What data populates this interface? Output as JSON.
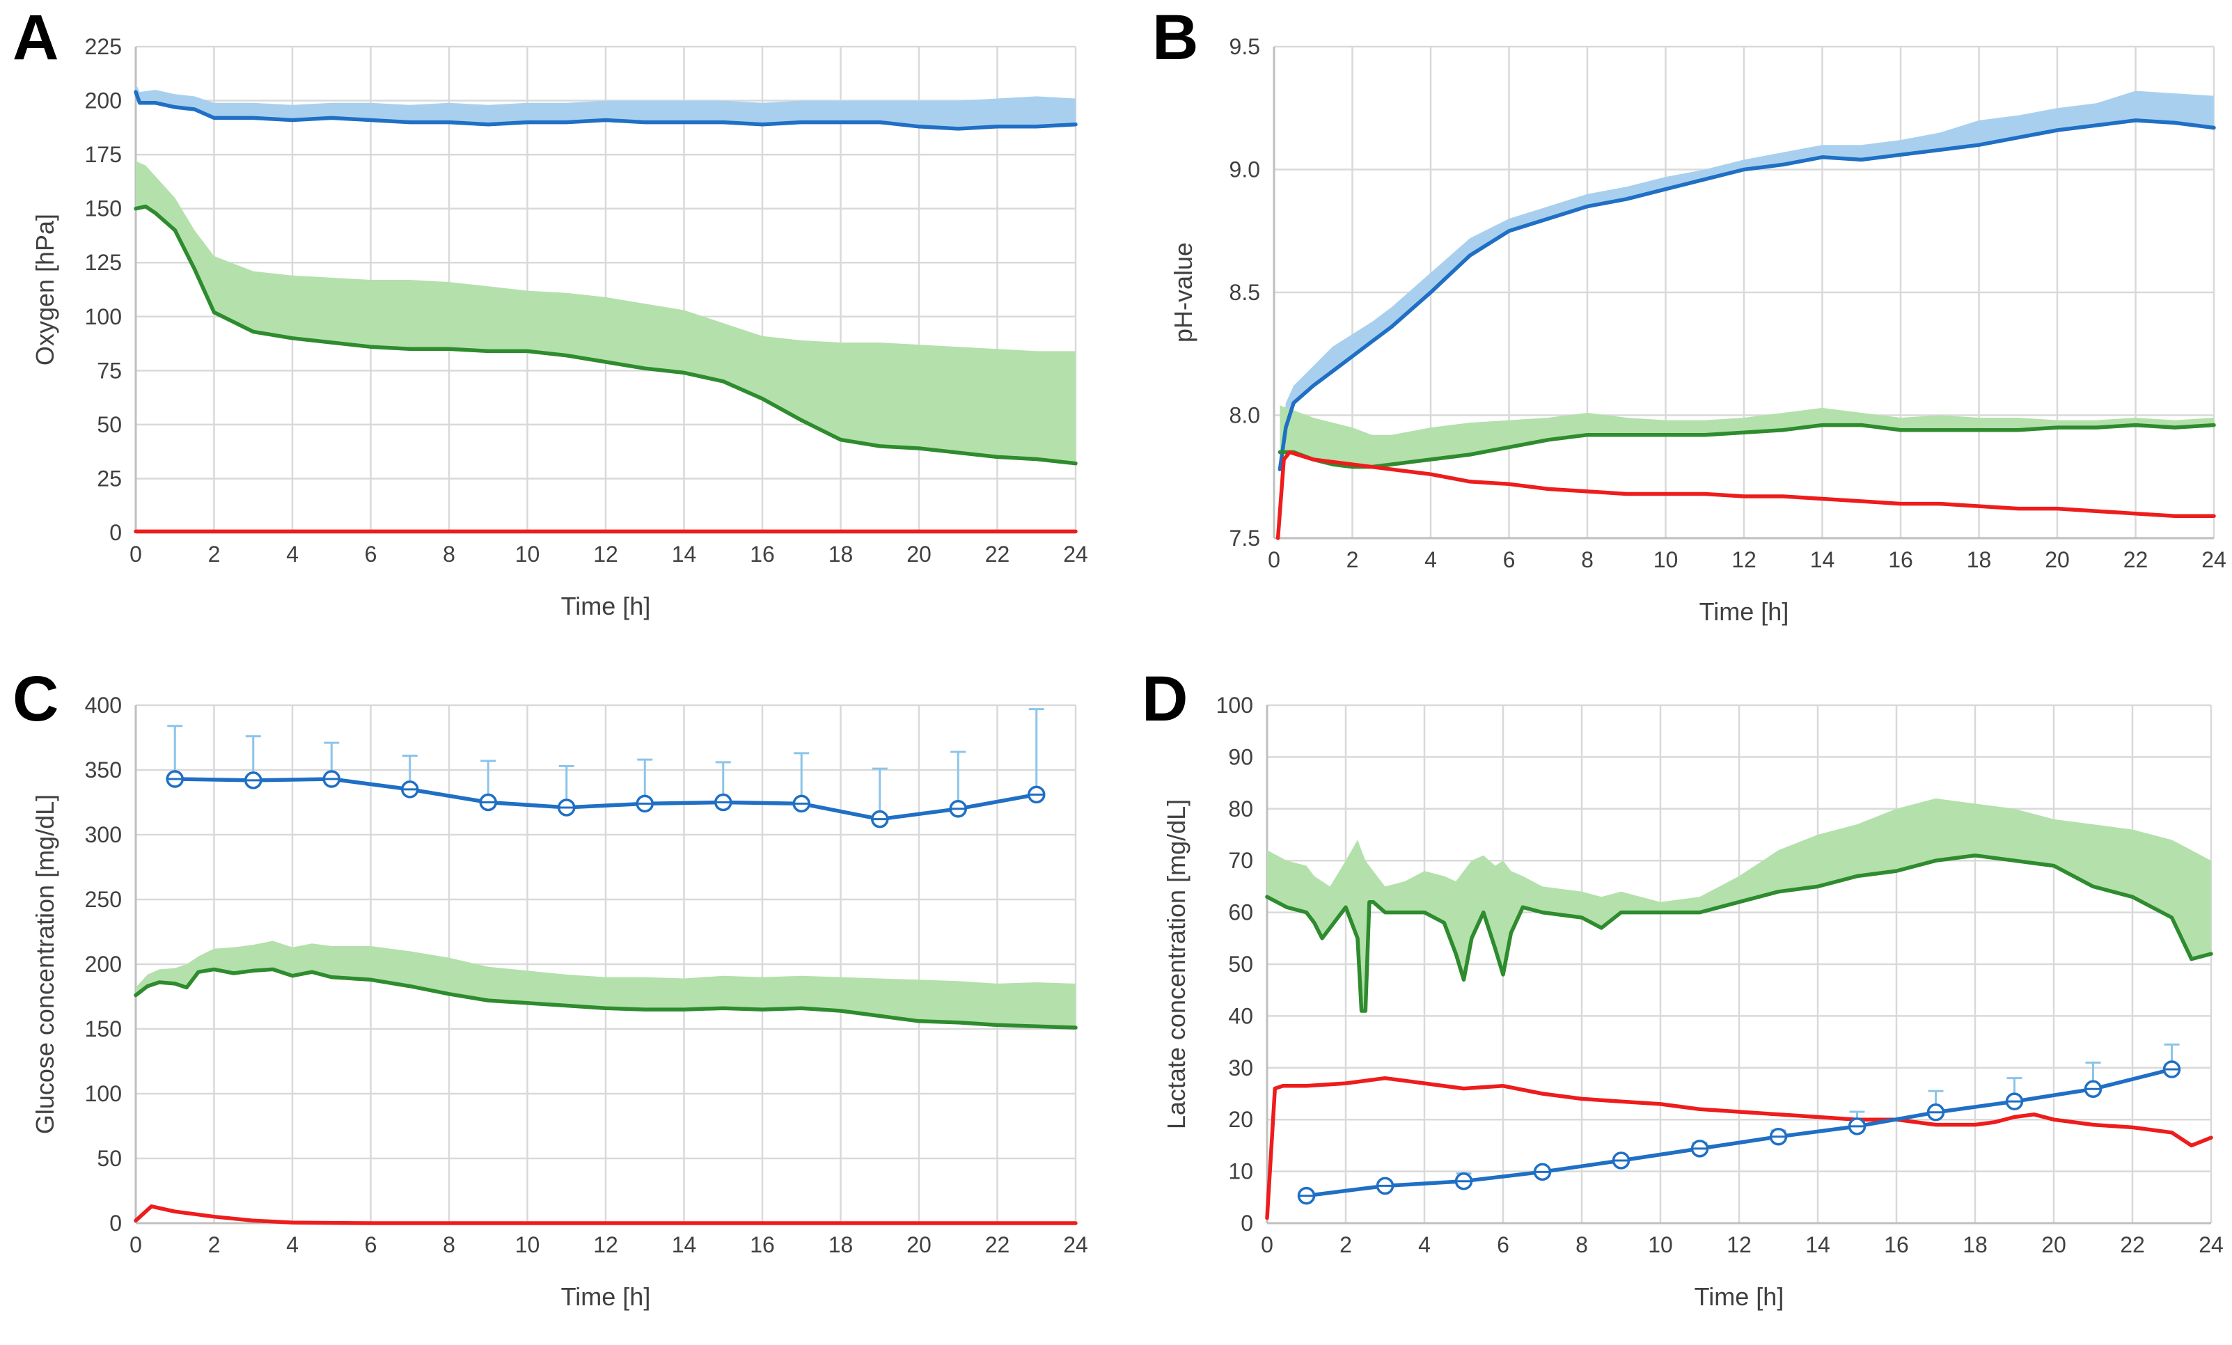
{
  "colors": {
    "control": "#1f6fc5",
    "control_band": "#a8d0ee",
    "cells": "#2e8b2e",
    "cells_band": "#b3e0ab",
    "medium": "#ee1c1c",
    "error_bar": "#8cc4ea"
  },
  "chart_data": [
    {
      "id": "A",
      "letter": "A",
      "type": "line",
      "xlabel": "Time [h]",
      "ylabel": "Oxygen [hPa]",
      "xlim": [
        0,
        24
      ],
      "xticks": [
        0,
        2,
        4,
        6,
        8,
        10,
        12,
        14,
        16,
        18,
        20,
        22,
        24
      ],
      "ylim": [
        0,
        225
      ],
      "yticks": [
        0,
        25,
        50,
        75,
        100,
        125,
        150,
        175,
        200,
        225
      ],
      "series": [
        {
          "name": "blue",
          "color": "control",
          "x": [
            0,
            0.1,
            0.5,
            1,
            1.5,
            2,
            3,
            4,
            5,
            6,
            7,
            8,
            9,
            10,
            11,
            12,
            13,
            14,
            15,
            16,
            17,
            18,
            19,
            20,
            21,
            22,
            23,
            24
          ],
          "y": [
            204,
            199,
            199,
            197,
            196,
            192,
            192,
            191,
            192,
            191,
            190,
            190,
            189,
            190,
            190,
            191,
            190,
            190,
            190,
            189,
            190,
            190,
            190,
            188,
            187,
            188,
            188,
            189
          ],
          "band_upper": [
            208,
            204,
            205,
            203,
            202,
            199,
            199,
            198,
            199,
            199,
            198,
            199,
            198,
            199,
            199,
            200,
            200,
            200,
            200,
            199,
            200,
            200,
            200,
            200,
            200,
            201,
            202,
            201
          ]
        },
        {
          "name": "green",
          "color": "cells",
          "x": [
            0,
            0.25,
            0.5,
            1,
            1.5,
            2,
            3,
            4,
            5,
            6,
            7,
            8,
            9,
            10,
            11,
            12,
            13,
            14,
            15,
            16,
            17,
            18,
            19,
            20,
            21,
            22,
            23,
            24
          ],
          "y": [
            150,
            151,
            148,
            140,
            122,
            102,
            93,
            90,
            88,
            86,
            85,
            85,
            84,
            84,
            82,
            79,
            76,
            74,
            70,
            62,
            52,
            43,
            40,
            39,
            37,
            35,
            34,
            32
          ],
          "band_upper": [
            172,
            170,
            165,
            155,
            140,
            128,
            121,
            119,
            118,
            117,
            117,
            116,
            114,
            112,
            111,
            109,
            106,
            103,
            97,
            91,
            89,
            88,
            88,
            87,
            86,
            85,
            84,
            84
          ]
        },
        {
          "name": "red",
          "color": "medium",
          "x": [
            0,
            24
          ],
          "y": [
            0.5,
            0.5
          ]
        }
      ]
    },
    {
      "id": "B",
      "letter": "B",
      "type": "line",
      "xlabel": "Time [h]",
      "ylabel": "pH-value",
      "xlim": [
        0,
        24
      ],
      "xticks": [
        0,
        2,
        4,
        6,
        8,
        10,
        12,
        14,
        16,
        18,
        20,
        22,
        24
      ],
      "ylim": [
        7.5,
        9.5
      ],
      "yticks": [
        "7.5",
        "8.0",
        "8.5",
        "9.0",
        "9.5"
      ],
      "series": [
        {
          "name": "blue",
          "color": "control",
          "x": [
            0.15,
            0.3,
            0.5,
            1,
            1.5,
            2,
            2.5,
            3,
            4,
            5,
            6,
            7,
            8,
            9,
            10,
            11,
            12,
            13,
            14,
            15,
            16,
            17,
            18,
            19,
            20,
            21,
            22,
            23,
            24
          ],
          "y": [
            7.78,
            7.95,
            8.05,
            8.12,
            8.18,
            8.24,
            8.3,
            8.36,
            8.5,
            8.65,
            8.75,
            8.8,
            8.85,
            8.88,
            8.92,
            8.96,
            9.0,
            9.02,
            9.05,
            9.04,
            9.06,
            9.08,
            9.1,
            9.13,
            9.16,
            9.18,
            9.2,
            9.19,
            9.17
          ],
          "band_upper": [
            7.82,
            8.05,
            8.12,
            8.2,
            8.28,
            8.33,
            8.38,
            8.44,
            8.58,
            8.72,
            8.8,
            8.85,
            8.9,
            8.93,
            8.97,
            9.0,
            9.04,
            9.07,
            9.1,
            9.1,
            9.12,
            9.15,
            9.2,
            9.22,
            9.25,
            9.27,
            9.32,
            9.31,
            9.3
          ]
        },
        {
          "name": "green",
          "color": "cells",
          "x": [
            0.15,
            0.5,
            1,
            1.5,
            2,
            2.5,
            3,
            4,
            5,
            6,
            7,
            8,
            9,
            10,
            11,
            12,
            13,
            14,
            15,
            16,
            17,
            18,
            19,
            20,
            21,
            22,
            23,
            24
          ],
          "y": [
            7.85,
            7.85,
            7.82,
            7.8,
            7.79,
            7.79,
            7.8,
            7.82,
            7.84,
            7.87,
            7.9,
            7.92,
            7.92,
            7.92,
            7.92,
            7.93,
            7.94,
            7.96,
            7.96,
            7.94,
            7.94,
            7.94,
            7.94,
            7.95,
            7.95,
            7.96,
            7.95,
            7.96
          ],
          "band_upper": [
            8.04,
            8.02,
            7.99,
            7.97,
            7.95,
            7.92,
            7.92,
            7.95,
            7.97,
            7.98,
            7.99,
            8.01,
            7.99,
            7.98,
            7.98,
            7.99,
            8.01,
            8.03,
            8.01,
            7.99,
            8.0,
            7.99,
            7.99,
            7.98,
            7.98,
            7.99,
            7.98,
            7.99
          ]
        },
        {
          "name": "red",
          "color": "medium",
          "x": [
            0.1,
            0.25,
            0.4,
            1,
            2,
            3,
            4,
            5,
            6,
            7,
            8,
            9,
            10,
            11,
            12,
            13,
            14,
            15,
            16,
            17,
            18,
            19,
            20,
            21,
            22,
            23,
            24
          ],
          "y": [
            7.5,
            7.82,
            7.85,
            7.82,
            7.8,
            7.78,
            7.76,
            7.73,
            7.72,
            7.7,
            7.69,
            7.68,
            7.68,
            7.68,
            7.67,
            7.67,
            7.66,
            7.65,
            7.64,
            7.64,
            7.63,
            7.62,
            7.62,
            7.61,
            7.6,
            7.59,
            7.59
          ]
        }
      ]
    },
    {
      "id": "C",
      "letter": "C",
      "type": "line",
      "xlabel": "Time [h]",
      "ylabel": "Glucose concentration [mg/dL]",
      "xlim": [
        0,
        24
      ],
      "xticks": [
        0,
        2,
        4,
        6,
        8,
        10,
        12,
        14,
        16,
        18,
        20,
        22,
        24
      ],
      "ylim": [
        0,
        400
      ],
      "yticks": [
        0,
        50,
        100,
        150,
        200,
        250,
        300,
        350,
        400
      ],
      "series": [
        {
          "name": "blue",
          "color": "control",
          "markers": true,
          "x": [
            1,
            3,
            5,
            7,
            9,
            11,
            13,
            15,
            17,
            19,
            21,
            23
          ],
          "y": [
            343,
            342,
            343,
            335,
            325,
            321,
            324,
            325,
            324,
            312,
            320,
            331
          ],
          "error_upper": [
            384,
            376,
            371,
            361,
            357,
            353,
            358,
            356,
            363,
            351,
            364,
            397
          ]
        },
        {
          "name": "green",
          "color": "cells",
          "x": [
            0,
            0.3,
            0.6,
            1,
            1.3,
            1.6,
            2,
            2.5,
            3,
            3.5,
            4,
            4.5,
            5,
            6,
            7,
            8,
            9,
            10,
            11,
            12,
            13,
            14,
            15,
            16,
            17,
            18,
            19,
            20,
            21,
            22,
            23,
            24
          ],
          "y": [
            176,
            183,
            186,
            185,
            182,
            194,
            196,
            193,
            195,
            196,
            191,
            194,
            190,
            188,
            183,
            177,
            172,
            170,
            168,
            166,
            165,
            165,
            166,
            165,
            166,
            164,
            160,
            156,
            155,
            153,
            152,
            151
          ],
          "band_upper": [
            182,
            192,
            196,
            197,
            200,
            206,
            212,
            213,
            215,
            218,
            213,
            216,
            214,
            214,
            210,
            205,
            198,
            195,
            192,
            190,
            190,
            189,
            191,
            190,
            191,
            190,
            189,
            188,
            187,
            185,
            186,
            185
          ]
        },
        {
          "name": "red",
          "color": "medium",
          "x": [
            0,
            0.4,
            1,
            2,
            3,
            4,
            5,
            6,
            24
          ],
          "y": [
            2,
            13,
            9,
            5,
            2,
            0.5,
            0.2,
            0,
            0
          ]
        }
      ]
    },
    {
      "id": "D",
      "letter": "D",
      "type": "line",
      "xlabel": "Time [h]",
      "ylabel": "Lactate  concentration [mg/dL]",
      "xlim": [
        0,
        24
      ],
      "xticks": [
        0,
        2,
        4,
        6,
        8,
        10,
        12,
        14,
        16,
        18,
        20,
        22,
        24
      ],
      "ylim": [
        0,
        100
      ],
      "yticks": [
        0,
        10,
        20,
        30,
        40,
        50,
        60,
        70,
        80,
        90,
        100
      ],
      "series": [
        {
          "name": "green",
          "color": "cells",
          "x": [
            0,
            0.5,
            1,
            1.2,
            1.4,
            1.6,
            2,
            2.3,
            2.4,
            2.5,
            2.6,
            2.7,
            3,
            3.5,
            4,
            4.5,
            4.8,
            5,
            5.2,
            5.5,
            5.8,
            6,
            6.2,
            6.5,
            7,
            8,
            8.5,
            9,
            10,
            11,
            12,
            13,
            14,
            15,
            16,
            17,
            18,
            19,
            20,
            21,
            22,
            23,
            23.5,
            24
          ],
          "y": [
            63,
            61,
            60,
            58,
            55,
            57,
            61,
            55,
            41,
            41,
            62,
            62,
            60,
            60,
            60,
            58,
            52,
            47,
            55,
            60,
            53,
            48,
            56,
            61,
            60,
            59,
            57,
            60,
            60,
            60,
            62,
            64,
            65,
            67,
            68,
            70,
            71,
            70,
            69,
            65,
            63,
            59,
            51,
            52
          ],
          "band_upper": [
            72,
            70,
            69,
            67,
            66,
            65,
            70,
            74,
            72,
            70,
            69,
            68,
            65,
            66,
            68,
            67,
            66,
            68,
            70,
            71,
            69,
            70,
            68,
            67,
            65,
            64,
            63,
            64,
            62,
            63,
            67,
            72,
            75,
            77,
            80,
            82,
            81,
            80,
            78,
            77,
            76,
            74,
            72,
            70
          ]
        },
        {
          "name": "red",
          "color": "medium",
          "x": [
            0,
            0.2,
            0.4,
            1,
            2,
            3,
            4,
            5,
            6,
            7,
            8,
            9,
            10,
            11,
            12,
            13,
            14,
            15,
            16,
            17,
            18,
            18.5,
            19,
            19.5,
            20,
            21,
            22,
            23,
            23.5,
            24
          ],
          "y": [
            1,
            26,
            26.5,
            26.5,
            27,
            28,
            27,
            26,
            26.5,
            25,
            24,
            23.5,
            23,
            22,
            21.5,
            21,
            20.5,
            20,
            20,
            19,
            19,
            19.5,
            20.5,
            21,
            20,
            19,
            18.5,
            17.5,
            15,
            16.5
          ]
        },
        {
          "name": "blue",
          "color": "control",
          "markers": true,
          "x": [
            1,
            3,
            5,
            7,
            9,
            11,
            13,
            15,
            17,
            19,
            21,
            23
          ],
          "y": [
            5.3,
            7.2,
            8.1,
            9.9,
            12.1,
            14.4,
            16.7,
            18.7,
            21.4,
            23.5,
            25.9,
            29.7
          ],
          "error_upper": [
            5.9,
            7.8,
            9.6,
            10.6,
            12.8,
            15.5,
            17.9,
            21.5,
            25.5,
            28.0,
            31.0,
            34.5
          ]
        }
      ]
    }
  ]
}
